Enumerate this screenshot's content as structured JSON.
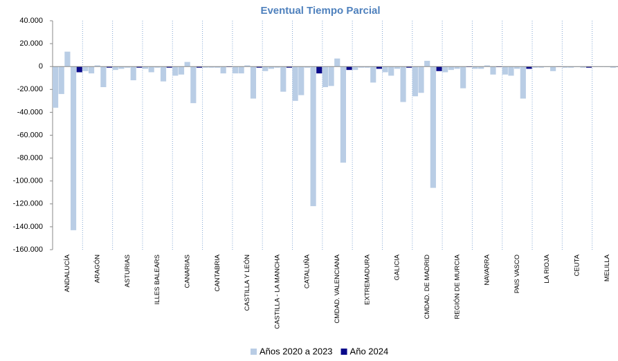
{
  "chart_data": {
    "type": "bar",
    "title": "Eventual Tiempo Parcial",
    "categories": [
      "ANDALUCÍA",
      "ARAGÓN",
      "ASTURIAS",
      "ILLES BALEARS",
      "CANARIAS",
      "CANTABRIA",
      "CASTILLA Y LEÓN",
      "CASTILLA - LA MANCHA",
      "CATALUÑA",
      "CMDAD. VALENCIANA",
      "EXTREMADURA",
      "GALICIA",
      "CMDAD. DE MADRID",
      "REGIÓN DE MURCIA",
      "NAVARRA",
      "PAIS VASCO",
      "LA RIOJA",
      "CEUTA",
      "MELILLA"
    ],
    "series": [
      {
        "name": "Años 2020 a 2023",
        "color": "#b9cde5",
        "values": [
          [
            -36000,
            -24000,
            13000,
            -143000
          ],
          [
            -4000,
            -6000,
            1000,
            -18000
          ],
          [
            -3000,
            -2000,
            -1000,
            -12000
          ],
          [
            -2000,
            -5000,
            -1000,
            -13000
          ],
          [
            -8000,
            -7000,
            4000,
            -32000
          ],
          [
            -1000,
            -1000,
            -1000,
            -6000
          ],
          [
            -6000,
            -6000,
            1000,
            -28000
          ],
          [
            -4000,
            -2000,
            -1000,
            -22000
          ],
          [
            -30000,
            -25000,
            -1000,
            -122000
          ],
          [
            -18000,
            -17000,
            7000,
            -84000
          ],
          [
            -3000,
            -1000,
            -1000,
            -14000
          ],
          [
            -5000,
            -8000,
            -2000,
            -31000
          ],
          [
            -26000,
            -23000,
            5000,
            -106000
          ],
          [
            -5000,
            -3000,
            -2000,
            -19000
          ],
          [
            -2000,
            -2000,
            1000,
            -7000
          ],
          [
            -7000,
            -8000,
            -2000,
            -28000
          ],
          [
            -1000,
            -1000,
            -500,
            -4000
          ],
          [
            -1000,
            -1000,
            -500,
            -1000
          ],
          [
            -500,
            -500,
            -500,
            -1000
          ]
        ]
      },
      {
        "name": "Año 2024",
        "color": "#0a0a8a",
        "values": [
          -5000,
          -1000,
          -1000,
          -1000,
          -1000,
          -500,
          -1000,
          -1000,
          -6000,
          -3000,
          -2000,
          -1000,
          -4000,
          -500,
          -500,
          -2000,
          -300,
          -1000,
          -300
        ]
      }
    ],
    "ylim": [
      -160000,
      40000
    ],
    "yticks": [
      {
        "value": 40000,
        "label": "40.000"
      },
      {
        "value": 20000,
        "label": "20.000"
      },
      0,
      {
        "value": -20000,
        "label": "-20.000"
      },
      {
        "value": -40000,
        "label": "-40.000"
      },
      {
        "value": -60000,
        "label": "-60.000"
      },
      {
        "value": -80000,
        "label": "-80.000"
      },
      {
        "value": -100000,
        "label": "-100.000"
      },
      {
        "value": -120000,
        "label": "-120.000"
      },
      {
        "value": -140000,
        "label": "-140.000"
      },
      {
        "value": -160000,
        "label": "-160.000"
      }
    ],
    "legend": "bottom"
  }
}
